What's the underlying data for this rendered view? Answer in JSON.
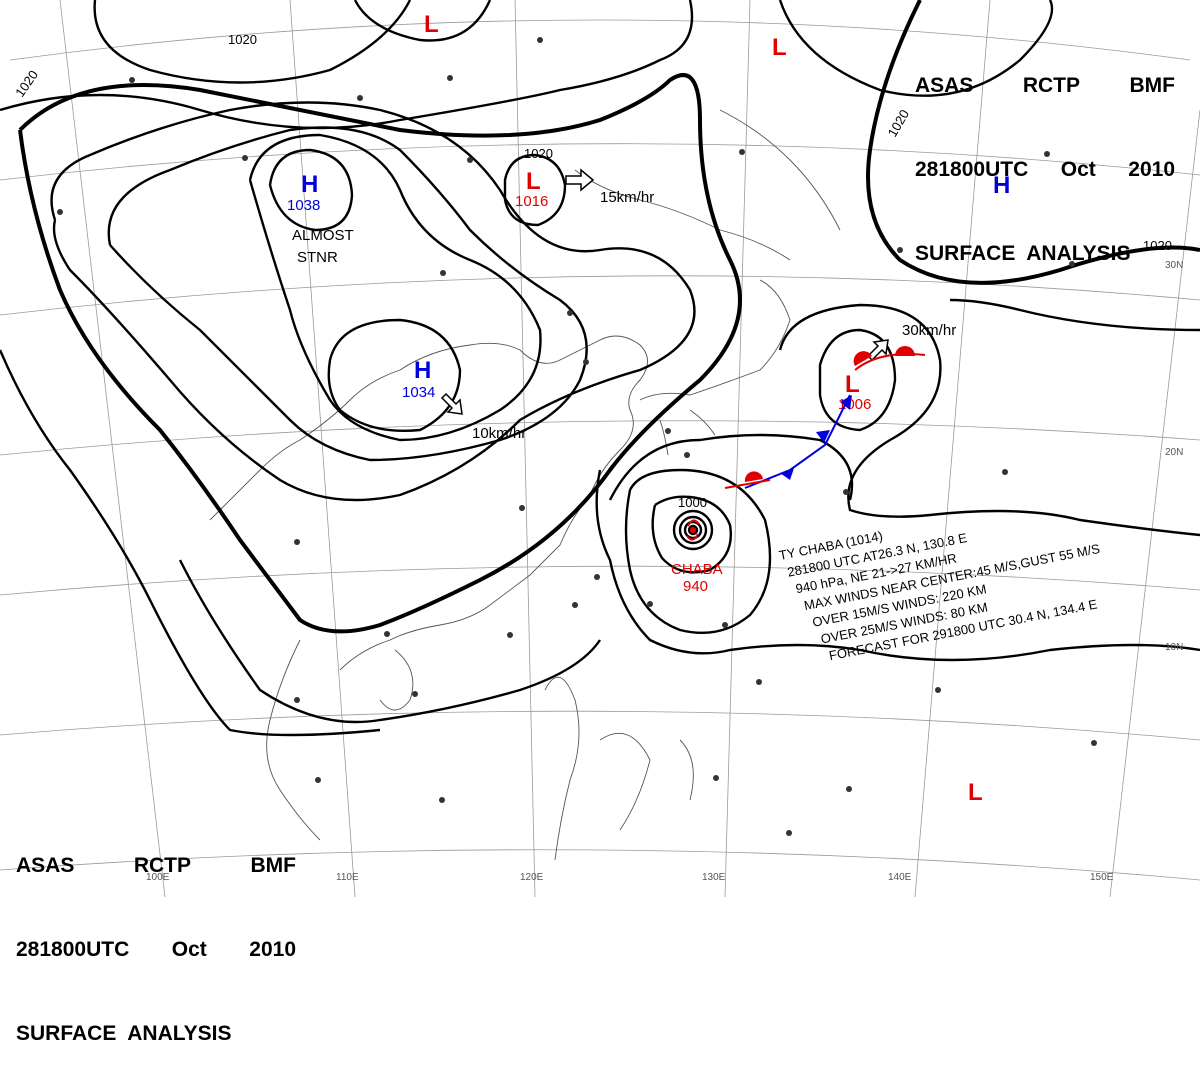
{
  "header": {
    "line1": [
      "ASAS",
      "RCTP",
      "BMF"
    ],
    "line2": [
      "281800UTC",
      "Oct",
      "2010"
    ],
    "line3": "SURFACE  ANALYSIS"
  },
  "pressure_centers": [
    {
      "type": "L",
      "label": "L",
      "value": ""
    },
    {
      "type": "L",
      "label": "L",
      "value": ""
    },
    {
      "type": "H",
      "label": "H",
      "value": "1038"
    },
    {
      "type": "H",
      "label": "H",
      "value": "1034"
    },
    {
      "type": "L",
      "label": "L",
      "value": "1016"
    },
    {
      "type": "H",
      "label": "H",
      "value": ""
    },
    {
      "type": "L",
      "label": "L",
      "value": "1006"
    },
    {
      "type": "L",
      "label": "L",
      "value": ""
    }
  ],
  "isobar_labels": [
    "1020",
    "1020",
    "1020",
    "1020",
    "1020",
    "1000"
  ],
  "motion": {
    "high_w": "ALMOST",
    "high_w2": "STNR",
    "high_c": "10km/hr",
    "low_n": "15km/hr",
    "low_e": "30km/hr"
  },
  "typhoon": {
    "name": "CHABA",
    "pressure": "940",
    "bulletin": [
      "TY  CHABA  (1014)",
      "281800 UTC  AT26.3 N, 130.8 E",
      "940 hPa, NE  21->27 KM/HR",
      "MAX WINDS NEAR CENTER:45 M/S,GUST 55 M/S",
      "OVER 15M/S WINDS: 220 KM",
      "OVER 25M/S WINDS: 80 KM",
      "FORECAST FOR 291800 UTC 30.4 N, 134.4 E"
    ]
  },
  "grid_labels": {
    "lon": [
      "100E",
      "110E",
      "120E",
      "130E",
      "140E",
      "150E"
    ],
    "lat": [
      "30N",
      "20N",
      "10N"
    ]
  },
  "colors": {
    "low": "#e00000",
    "high": "#0000dd",
    "cold_front": "#0000dd",
    "warm_front": "#e00000"
  }
}
